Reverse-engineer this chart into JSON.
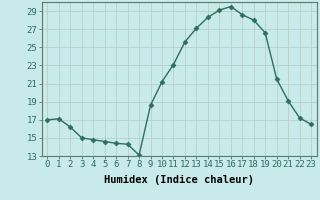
{
  "x": [
    0,
    1,
    2,
    3,
    4,
    5,
    6,
    7,
    8,
    9,
    10,
    11,
    12,
    13,
    14,
    15,
    16,
    17,
    18,
    19,
    20,
    21,
    22,
    23
  ],
  "y": [
    17.0,
    17.1,
    16.2,
    15.0,
    14.8,
    14.6,
    14.4,
    14.3,
    13.1,
    18.6,
    21.2,
    23.1,
    25.6,
    27.1,
    28.3,
    29.1,
    29.5,
    28.6,
    28.0,
    26.6,
    21.5,
    19.1,
    17.2,
    16.5
  ],
  "line_color": "#2e6e60",
  "marker": "D",
  "marker_size": 2.5,
  "bg_color": "#c8eaea",
  "grid_color": "#b8c8c0",
  "xlabel": "Humidex (Indice chaleur)",
  "ylim": [
    13,
    30
  ],
  "yticks": [
    13,
    15,
    17,
    19,
    21,
    23,
    25,
    27,
    29
  ],
  "xticks": [
    0,
    1,
    2,
    3,
    4,
    5,
    6,
    7,
    8,
    9,
    10,
    11,
    12,
    13,
    14,
    15,
    16,
    17,
    18,
    19,
    20,
    21,
    22,
    23
  ],
  "tick_fontsize": 6.5,
  "xlabel_fontsize": 7.5,
  "linewidth": 1.0
}
